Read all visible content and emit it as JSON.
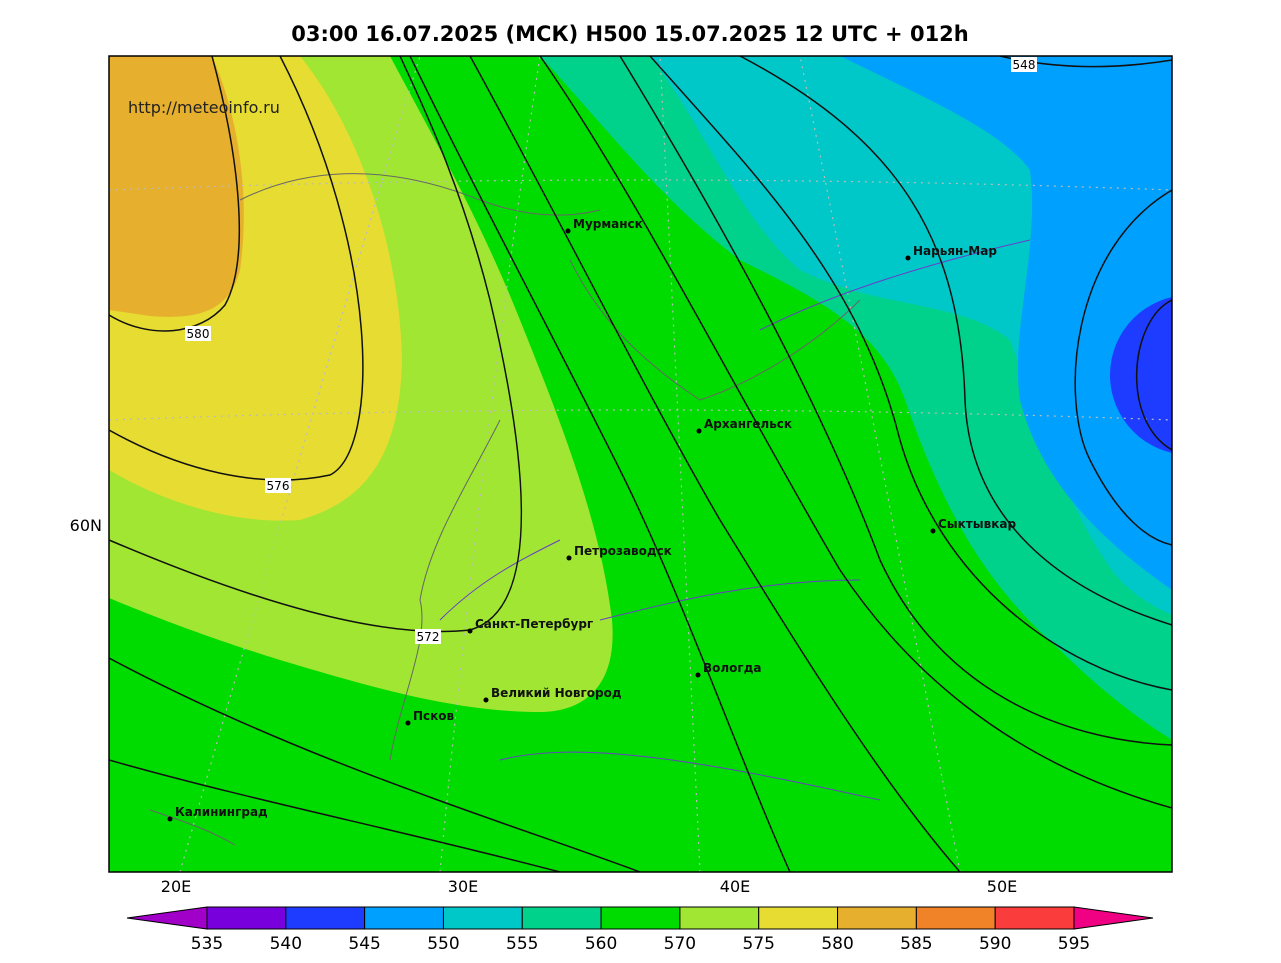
{
  "header": {
    "title": "03:00 16.07.2025 (МСК) H500  15.07.2025 12 UTC + 012h",
    "url": "http://meteoinfo.ru"
  },
  "map": {
    "cities": [
      "Мурманск",
      "Нарьян-Мар",
      "Архангельск",
      "Сыктывкар",
      "Петрозаводск",
      "Санкт-Петербург",
      "Вологда",
      "Великий Новгород",
      "Псков",
      "Калининград"
    ],
    "contour_labels": [
      548,
      580,
      576,
      572
    ],
    "lon_labels": [
      "20E",
      "30E",
      "40E",
      "50E"
    ],
    "lat_labels": [
      "60N"
    ]
  },
  "colorbar": {
    "levels": [
      535,
      540,
      545,
      550,
      555,
      560,
      570,
      575,
      580,
      585,
      590,
      595
    ],
    "colors": [
      "#a000c8",
      "#7800dc",
      "#1e3cff",
      "#00a0ff",
      "#00c8c8",
      "#00d28c",
      "#00dc00",
      "#a0e632",
      "#e6dc32",
      "#e6af2d",
      "#f08228",
      "#fa3c3c",
      "#f00082"
    ]
  }
}
